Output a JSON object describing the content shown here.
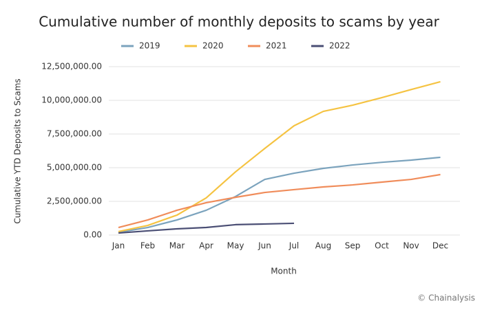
{
  "chart_data": {
    "type": "line",
    "title": "Cumulative number of monthly deposits to scams by year",
    "x_label": "Month",
    "y_label": "Cumulative YTD Deposits to Scams",
    "source": "© Chainalysis",
    "categories": [
      "Jan",
      "Feb",
      "Mar",
      "Apr",
      "May",
      "Jun",
      "Jul",
      "Aug",
      "Sep",
      "Oct",
      "Nov",
      "Dec"
    ],
    "series": [
      {
        "name": "2019",
        "color": "#7ba3bd",
        "values": [
          200000,
          560000,
          1120000,
          1840000,
          2860000,
          4130000,
          4590000,
          4950000,
          5200000,
          5400000,
          5560000,
          5770000
        ]
      },
      {
        "name": "2020",
        "color": "#f5c342",
        "values": [
          260000,
          710000,
          1480000,
          2760000,
          4690000,
          6430000,
          8110000,
          9180000,
          9640000,
          10200000,
          10800000,
          11380000
        ]
      },
      {
        "name": "2021",
        "color": "#f08c5a",
        "values": [
          560000,
          1120000,
          1840000,
          2400000,
          2800000,
          3160000,
          3370000,
          3570000,
          3720000,
          3930000,
          4130000,
          4490000
        ]
      },
      {
        "name": "2022",
        "color": "#4a4e74",
        "values": [
          150000,
          310000,
          460000,
          560000,
          770000,
          820000,
          870000,
          null,
          null,
          null,
          null,
          null
        ]
      }
    ],
    "ylim": [
      0,
      12500000
    ],
    "yticks": [
      {
        "value": 0,
        "label": "0.00"
      },
      {
        "value": 2500000,
        "label": "2,500,000.00"
      },
      {
        "value": 5000000,
        "label": "5,000,000.00"
      },
      {
        "value": 7500000,
        "label": "7,500,000.00"
      },
      {
        "value": 10000000,
        "label": "10,000,000.00"
      },
      {
        "value": 12500000,
        "label": "12,500,000.00"
      }
    ],
    "grid": true,
    "legend": "top"
  }
}
